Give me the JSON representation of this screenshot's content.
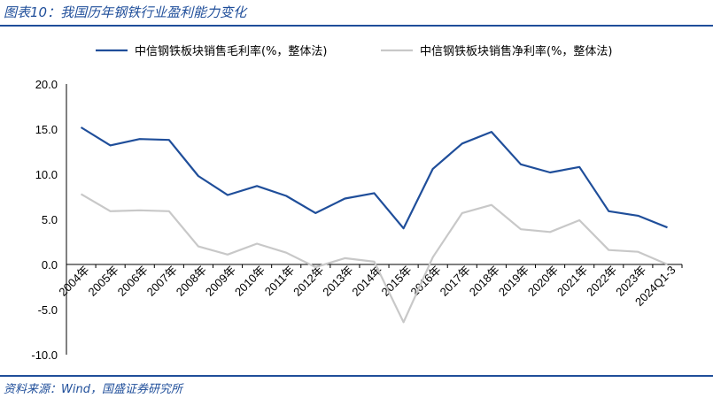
{
  "header": {
    "title": "图表10：我国历年钢铁行业盈利能力变化"
  },
  "footer": {
    "source": "资料来源：Wind，国盛证券研究所"
  },
  "colors": {
    "accent": "#1f4e9a",
    "series1": "#1f4e9a",
    "series2": "#c8c8c8"
  },
  "chart_data": {
    "type": "line",
    "categories": [
      "2004年",
      "2005年",
      "2006年",
      "2007年",
      "2008年",
      "2009年",
      "2010年",
      "2011年",
      "2012年",
      "2013年",
      "2014年",
      "2015年",
      "2016年",
      "2017年",
      "2018年",
      "2019年",
      "2020年",
      "2021年",
      "2022年",
      "2023年",
      "2024Q1-3"
    ],
    "series": [
      {
        "name": "中信钢铁板块销售毛利率(%，整体法)",
        "values": [
          15.2,
          13.2,
          13.9,
          13.8,
          9.8,
          7.7,
          8.7,
          7.6,
          5.7,
          7.3,
          7.9,
          4.0,
          10.6,
          13.4,
          14.7,
          11.1,
          10.2,
          10.8,
          5.9,
          5.4,
          4.1
        ]
      },
      {
        "name": "中信钢铁板块销售净利率(%，整体法)",
        "values": [
          7.8,
          5.9,
          6.0,
          5.9,
          2.0,
          1.1,
          2.3,
          1.3,
          -0.3,
          0.7,
          0.3,
          -6.4,
          0.8,
          5.7,
          6.6,
          3.9,
          3.6,
          4.9,
          1.6,
          1.4,
          0.0
        ]
      }
    ],
    "yticks": [
      "20.0",
      "15.0",
      "10.0",
      "5.0",
      "0.0",
      "-5.0",
      "-10.0"
    ],
    "ylim": [
      -10,
      20
    ],
    "grid": false,
    "legend_position": "top"
  }
}
